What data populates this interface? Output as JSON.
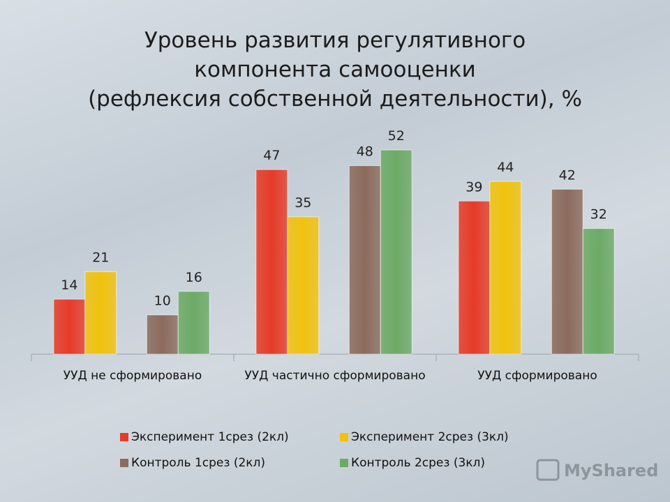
{
  "chart_data": {
    "type": "bar",
    "title": [
      "Уровень развития регулятивного",
      "компонента самооценки",
      "(рефлексия собственной деятельности), %"
    ],
    "categories": [
      "УУД не сформировано",
      "УУД частично сформировано",
      "УУД сформировано"
    ],
    "series": [
      {
        "name": "Эксперимент 1срез (2кл)",
        "color": "#e63b28",
        "values": [
          14,
          47,
          39
        ]
      },
      {
        "name": "Эксперимент 2срез (3кл)",
        "color": "#f0c20e",
        "values": [
          21,
          35,
          44
        ]
      },
      {
        "name": "Контроль 1срез (2кл)",
        "color": "#8c6b5d",
        "values": [
          10,
          48,
          42
        ]
      },
      {
        "name": "Контроль 2срез (3кл)",
        "color": "#6caa66",
        "values": [
          16,
          52,
          32
        ]
      }
    ],
    "ylim": [
      0,
      60
    ],
    "watermark": "MyShared"
  }
}
